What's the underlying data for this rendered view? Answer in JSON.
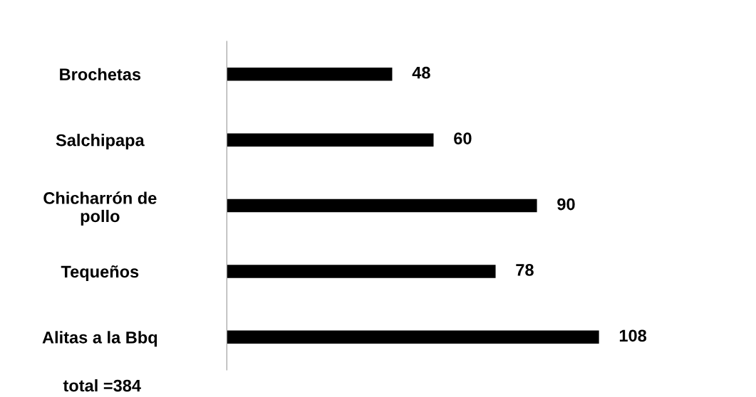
{
  "chart_data": {
    "type": "bar",
    "orientation": "horizontal",
    "categories": [
      "Brochetas",
      "Salchipapa",
      "Chicharrón de\npollo",
      "Tequeños",
      "Alitas a la Bbq"
    ],
    "values": [
      48,
      60,
      90,
      78,
      108
    ],
    "color": "#000000",
    "data_labels": true,
    "grid": false,
    "legend": false,
    "annotations": [
      "total =384"
    ]
  }
}
